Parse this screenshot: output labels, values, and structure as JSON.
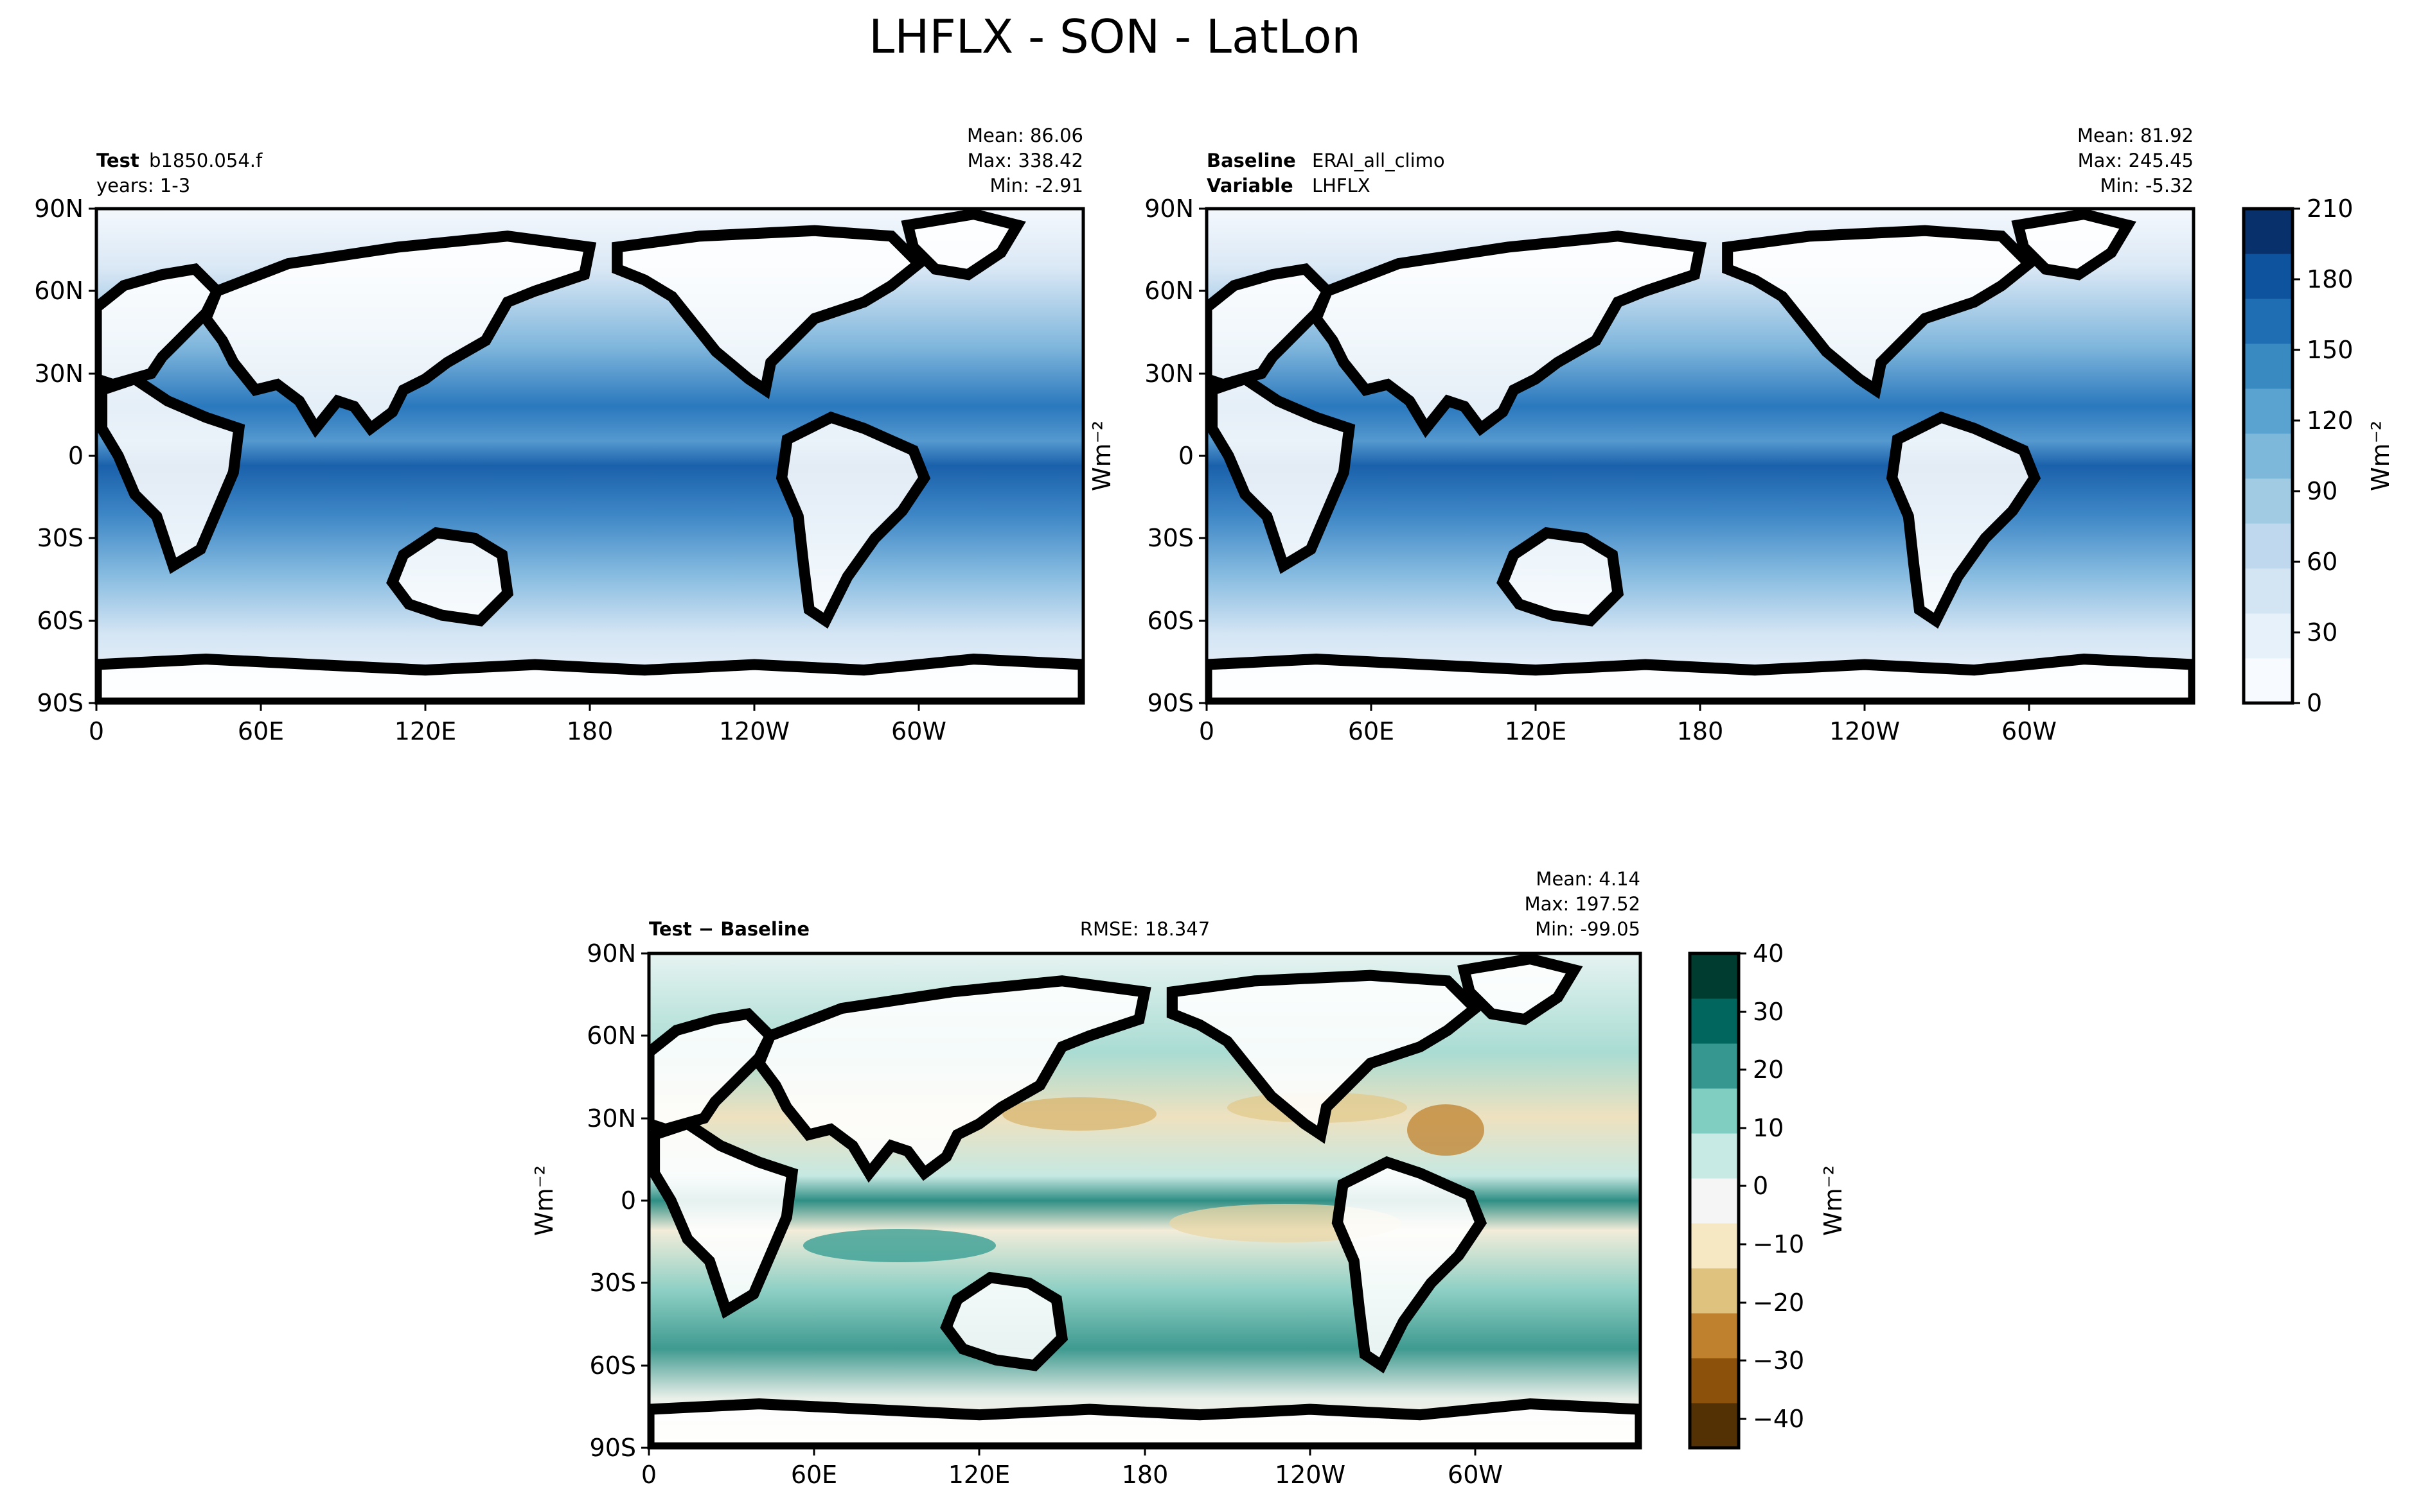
{
  "chart_data": {
    "type": "heatmap",
    "title": "LHFLX - SON - LatLon",
    "panels": [
      {
        "id": "test",
        "header_left": [
          {
            "label": "Test",
            "value": "b1850.054.f"
          },
          {
            "label": "",
            "value": "years: 1-3"
          }
        ],
        "stats": [
          "Mean: 86.06",
          "Max: 338.42",
          "Min: -2.91"
        ],
        "rmse": "",
        "xticks": [
          "0",
          "60E",
          "120E",
          "180",
          "120W",
          "60W"
        ],
        "yticks": [
          "90N",
          "60N",
          "30N",
          "0",
          "30S",
          "60S",
          "90S"
        ],
        "xlim": [
          0,
          360
        ],
        "ylim": [
          -90,
          90
        ],
        "ylabel": ""
      },
      {
        "id": "baseline",
        "header_left": [
          {
            "label": "Baseline",
            "value": "ERAI_all_climo"
          },
          {
            "label": "Variable",
            "value": "LHFLX"
          }
        ],
        "stats": [
          "Mean: 81.92",
          "Max: 245.45",
          "Min: -5.32"
        ],
        "rmse": "",
        "xticks": [
          "0",
          "60E",
          "120E",
          "180",
          "120W",
          "60W"
        ],
        "yticks": [
          "90N",
          "60N",
          "30N",
          "0",
          "30S",
          "60S",
          "90S"
        ],
        "xlim": [
          0,
          360
        ],
        "ylim": [
          -90,
          90
        ],
        "ylabel": "Wm⁻²"
      },
      {
        "id": "diff",
        "header_left": [
          {
            "label": "Test − Baseline",
            "value": ""
          }
        ],
        "stats": [
          "Mean:  4.14",
          "Max: 197.52",
          "Min: -99.05"
        ],
        "rmse": "RMSE: 18.347",
        "xticks": [
          "0",
          "60E",
          "120E",
          "180",
          "120W",
          "60W"
        ],
        "yticks": [
          "90N",
          "60N",
          "30N",
          "0",
          "30S",
          "60S",
          "90S"
        ],
        "xlim": [
          0,
          360
        ],
        "ylim": [
          -90,
          90
        ],
        "ylabel": "Wm⁻²"
      }
    ],
    "colorbars": [
      {
        "id": "cbar-main",
        "label": "Wm⁻²",
        "range": [
          0,
          210
        ],
        "ticks": [
          "0",
          "30",
          "60",
          "90",
          "120",
          "150",
          "180",
          "210"
        ],
        "colors": [
          "#f7fbff",
          "#e7f1fa",
          "#d3e4f3",
          "#bfd8ed",
          "#a0cbe2",
          "#7db8da",
          "#5aa2cf",
          "#3a8ac2",
          "#1f6eb3",
          "#0d539e",
          "#08306b"
        ]
      },
      {
        "id": "cbar-diff",
        "label": "Wm⁻²",
        "range": [
          -45,
          40
        ],
        "ticks": [
          "−40",
          "−30",
          "−20",
          "−10",
          "0",
          "10",
          "20",
          "30",
          "40"
        ],
        "colors": [
          "#543005",
          "#8c510a",
          "#bf812d",
          "#dfc27d",
          "#f6e8c3",
          "#f5f5f5",
          "#c7eae5",
          "#80cdc1",
          "#35978f",
          "#01665e",
          "#003c30"
        ]
      }
    ],
    "grid": false
  }
}
